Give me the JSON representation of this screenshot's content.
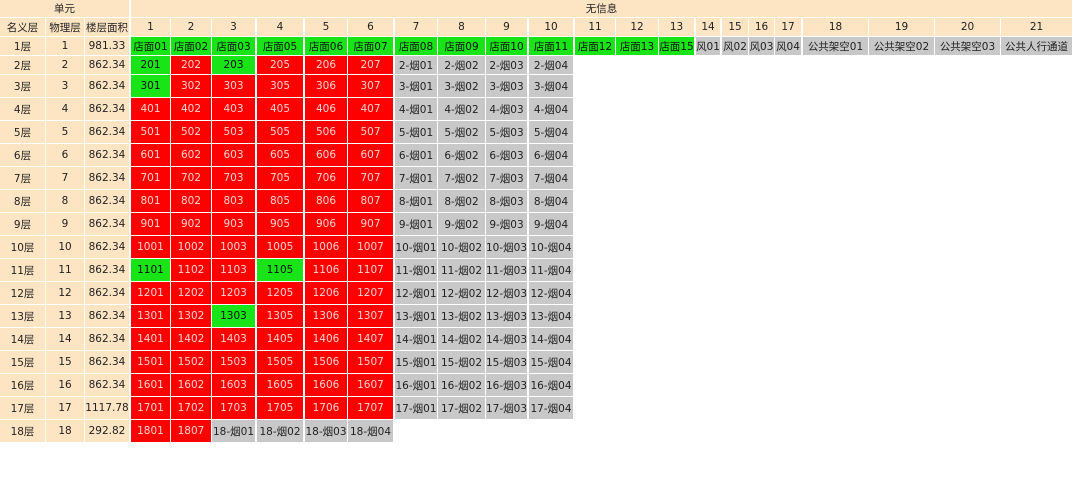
{
  "headers": {
    "unit": "单元",
    "info": "无信息",
    "col_labels": [
      "名义层",
      "物理层",
      "楼层面积"
    ],
    "col_numbers": [
      "1",
      "2",
      "3",
      "4",
      "5",
      "6",
      "7",
      "8",
      "9",
      "10",
      "11",
      "12",
      "13",
      "14",
      "15",
      "16",
      "17",
      "18",
      "19",
      "20",
      "21"
    ]
  },
  "colors": {
    "red": "#ff0000",
    "green": "#18e418",
    "gray": "#c8c8c8",
    "header": "#fde5c4"
  },
  "rows": [
    {
      "name": "1层",
      "phys": "1",
      "area": "981.33",
      "units": [
        {
          "t": "店面01",
          "s": "g"
        },
        {
          "t": "店面02",
          "s": "g"
        },
        {
          "t": "店面03",
          "s": "g"
        },
        {
          "t": "店面05",
          "s": "g"
        },
        {
          "t": "店面06",
          "s": "g"
        },
        {
          "t": "店面07",
          "s": "g"
        },
        {
          "t": "店面08",
          "s": "g"
        },
        {
          "t": "店面09",
          "s": "g"
        },
        {
          "t": "店面10",
          "s": "g"
        },
        {
          "t": "店面11",
          "s": "g"
        },
        {
          "t": "店面12",
          "s": "g"
        },
        {
          "t": "店面13",
          "s": "g"
        },
        {
          "t": "店面15",
          "s": "g"
        },
        {
          "t": "风01",
          "s": "x"
        },
        {
          "t": "风02",
          "s": "x"
        },
        {
          "t": "风03",
          "s": "x"
        },
        {
          "t": "风04",
          "s": "x"
        },
        {
          "t": "公共架空01",
          "s": "x"
        },
        {
          "t": "公共架空02",
          "s": "x"
        },
        {
          "t": "公共架空03",
          "s": "x"
        },
        {
          "t": "公共人行通道",
          "s": "x"
        }
      ]
    },
    {
      "name": "2层",
      "phys": "2",
      "area": "862.34",
      "units": [
        {
          "t": "201",
          "s": "g"
        },
        {
          "t": "202",
          "s": "r"
        },
        {
          "t": "203",
          "s": "g"
        },
        {
          "t": "205",
          "s": "r"
        },
        {
          "t": "206",
          "s": "r"
        },
        {
          "t": "207",
          "s": "r"
        },
        {
          "t": "2-烟01",
          "s": "x"
        },
        {
          "t": "2-烟02",
          "s": "x"
        },
        {
          "t": "2-烟03",
          "s": "x"
        },
        {
          "t": "2-烟04",
          "s": "x"
        }
      ]
    },
    {
      "name": "3层",
      "phys": "3",
      "area": "862.34",
      "units": [
        {
          "t": "301",
          "s": "g"
        },
        {
          "t": "302",
          "s": "r"
        },
        {
          "t": "303",
          "s": "r"
        },
        {
          "t": "305",
          "s": "r"
        },
        {
          "t": "306",
          "s": "r"
        },
        {
          "t": "307",
          "s": "r"
        },
        {
          "t": "3-烟01",
          "s": "x"
        },
        {
          "t": "3-烟02",
          "s": "x"
        },
        {
          "t": "3-烟03",
          "s": "x"
        },
        {
          "t": "3-烟04",
          "s": "x"
        }
      ]
    },
    {
      "name": "4层",
      "phys": "4",
      "area": "862.34",
      "units": [
        {
          "t": "401",
          "s": "r"
        },
        {
          "t": "402",
          "s": "r"
        },
        {
          "t": "403",
          "s": "r"
        },
        {
          "t": "405",
          "s": "r"
        },
        {
          "t": "406",
          "s": "r"
        },
        {
          "t": "407",
          "s": "r"
        },
        {
          "t": "4-烟01",
          "s": "x"
        },
        {
          "t": "4-烟02",
          "s": "x"
        },
        {
          "t": "4-烟03",
          "s": "x"
        },
        {
          "t": "4-烟04",
          "s": "x"
        }
      ]
    },
    {
      "name": "5层",
      "phys": "5",
      "area": "862.34",
      "units": [
        {
          "t": "501",
          "s": "r"
        },
        {
          "t": "502",
          "s": "r"
        },
        {
          "t": "503",
          "s": "r"
        },
        {
          "t": "505",
          "s": "r"
        },
        {
          "t": "506",
          "s": "r"
        },
        {
          "t": "507",
          "s": "r"
        },
        {
          "t": "5-烟01",
          "s": "x"
        },
        {
          "t": "5-烟02",
          "s": "x"
        },
        {
          "t": "5-烟03",
          "s": "x"
        },
        {
          "t": "5-烟04",
          "s": "x"
        }
      ]
    },
    {
      "name": "6层",
      "phys": "6",
      "area": "862.34",
      "units": [
        {
          "t": "601",
          "s": "r"
        },
        {
          "t": "602",
          "s": "r"
        },
        {
          "t": "603",
          "s": "r"
        },
        {
          "t": "605",
          "s": "r"
        },
        {
          "t": "606",
          "s": "r"
        },
        {
          "t": "607",
          "s": "r"
        },
        {
          "t": "6-烟01",
          "s": "x"
        },
        {
          "t": "6-烟02",
          "s": "x"
        },
        {
          "t": "6-烟03",
          "s": "x"
        },
        {
          "t": "6-烟04",
          "s": "x"
        }
      ]
    },
    {
      "name": "7层",
      "phys": "7",
      "area": "862.34",
      "units": [
        {
          "t": "701",
          "s": "r"
        },
        {
          "t": "702",
          "s": "r"
        },
        {
          "t": "703",
          "s": "r"
        },
        {
          "t": "705",
          "s": "r"
        },
        {
          "t": "706",
          "s": "r"
        },
        {
          "t": "707",
          "s": "r"
        },
        {
          "t": "7-烟01",
          "s": "x"
        },
        {
          "t": "7-烟02",
          "s": "x"
        },
        {
          "t": "7-烟03",
          "s": "x"
        },
        {
          "t": "7-烟04",
          "s": "x"
        }
      ]
    },
    {
      "name": "8层",
      "phys": "8",
      "area": "862.34",
      "units": [
        {
          "t": "801",
          "s": "r"
        },
        {
          "t": "802",
          "s": "r"
        },
        {
          "t": "803",
          "s": "r"
        },
        {
          "t": "805",
          "s": "r"
        },
        {
          "t": "806",
          "s": "r"
        },
        {
          "t": "807",
          "s": "r"
        },
        {
          "t": "8-烟01",
          "s": "x"
        },
        {
          "t": "8-烟02",
          "s": "x"
        },
        {
          "t": "8-烟03",
          "s": "x"
        },
        {
          "t": "8-烟04",
          "s": "x"
        }
      ]
    },
    {
      "name": "9层",
      "phys": "9",
      "area": "862.34",
      "units": [
        {
          "t": "901",
          "s": "r"
        },
        {
          "t": "902",
          "s": "r"
        },
        {
          "t": "903",
          "s": "r"
        },
        {
          "t": "905",
          "s": "r"
        },
        {
          "t": "906",
          "s": "r"
        },
        {
          "t": "907",
          "s": "r"
        },
        {
          "t": "9-烟01",
          "s": "x"
        },
        {
          "t": "9-烟02",
          "s": "x"
        },
        {
          "t": "9-烟03",
          "s": "x"
        },
        {
          "t": "9-烟04",
          "s": "x"
        }
      ]
    },
    {
      "name": "10层",
      "phys": "10",
      "area": "862.34",
      "units": [
        {
          "t": "1001",
          "s": "r"
        },
        {
          "t": "1002",
          "s": "r"
        },
        {
          "t": "1003",
          "s": "r"
        },
        {
          "t": "1005",
          "s": "r"
        },
        {
          "t": "1006",
          "s": "r"
        },
        {
          "t": "1007",
          "s": "r"
        },
        {
          "t": "10-烟01",
          "s": "x"
        },
        {
          "t": "10-烟02",
          "s": "x"
        },
        {
          "t": "10-烟03",
          "s": "x"
        },
        {
          "t": "10-烟04",
          "s": "x"
        }
      ]
    },
    {
      "name": "11层",
      "phys": "11",
      "area": "862.34",
      "units": [
        {
          "t": "1101",
          "s": "g"
        },
        {
          "t": "1102",
          "s": "r"
        },
        {
          "t": "1103",
          "s": "r"
        },
        {
          "t": "1105",
          "s": "g"
        },
        {
          "t": "1106",
          "s": "r"
        },
        {
          "t": "1107",
          "s": "r"
        },
        {
          "t": "11-烟01",
          "s": "x"
        },
        {
          "t": "11-烟02",
          "s": "x"
        },
        {
          "t": "11-烟03",
          "s": "x"
        },
        {
          "t": "11-烟04",
          "s": "x"
        }
      ]
    },
    {
      "name": "12层",
      "phys": "12",
      "area": "862.34",
      "units": [
        {
          "t": "1201",
          "s": "r"
        },
        {
          "t": "1202",
          "s": "r"
        },
        {
          "t": "1203",
          "s": "r"
        },
        {
          "t": "1205",
          "s": "r"
        },
        {
          "t": "1206",
          "s": "r"
        },
        {
          "t": "1207",
          "s": "r"
        },
        {
          "t": "12-烟01",
          "s": "x"
        },
        {
          "t": "12-烟02",
          "s": "x"
        },
        {
          "t": "12-烟03",
          "s": "x"
        },
        {
          "t": "12-烟04",
          "s": "x"
        }
      ]
    },
    {
      "name": "13层",
      "phys": "13",
      "area": "862.34",
      "units": [
        {
          "t": "1301",
          "s": "r"
        },
        {
          "t": "1302",
          "s": "r"
        },
        {
          "t": "1303",
          "s": "g"
        },
        {
          "t": "1305",
          "s": "r"
        },
        {
          "t": "1306",
          "s": "r"
        },
        {
          "t": "1307",
          "s": "r"
        },
        {
          "t": "13-烟01",
          "s": "x"
        },
        {
          "t": "13-烟02",
          "s": "x"
        },
        {
          "t": "13-烟03",
          "s": "x"
        },
        {
          "t": "13-烟04",
          "s": "x"
        }
      ]
    },
    {
      "name": "14层",
      "phys": "14",
      "area": "862.34",
      "units": [
        {
          "t": "1401",
          "s": "r"
        },
        {
          "t": "1402",
          "s": "r"
        },
        {
          "t": "1403",
          "s": "r"
        },
        {
          "t": "1405",
          "s": "r"
        },
        {
          "t": "1406",
          "s": "r"
        },
        {
          "t": "1407",
          "s": "r"
        },
        {
          "t": "14-烟01",
          "s": "x"
        },
        {
          "t": "14-烟02",
          "s": "x"
        },
        {
          "t": "14-烟03",
          "s": "x"
        },
        {
          "t": "14-烟04",
          "s": "x"
        }
      ]
    },
    {
      "name": "15层",
      "phys": "15",
      "area": "862.34",
      "units": [
        {
          "t": "1501",
          "s": "r"
        },
        {
          "t": "1502",
          "s": "r"
        },
        {
          "t": "1503",
          "s": "r"
        },
        {
          "t": "1505",
          "s": "r"
        },
        {
          "t": "1506",
          "s": "r"
        },
        {
          "t": "1507",
          "s": "r"
        },
        {
          "t": "15-烟01",
          "s": "x"
        },
        {
          "t": "15-烟02",
          "s": "x"
        },
        {
          "t": "15-烟03",
          "s": "x"
        },
        {
          "t": "15-烟04",
          "s": "x"
        }
      ]
    },
    {
      "name": "16层",
      "phys": "16",
      "area": "862.34",
      "units": [
        {
          "t": "1601",
          "s": "r"
        },
        {
          "t": "1602",
          "s": "r"
        },
        {
          "t": "1603",
          "s": "r"
        },
        {
          "t": "1605",
          "s": "r"
        },
        {
          "t": "1606",
          "s": "r"
        },
        {
          "t": "1607",
          "s": "r"
        },
        {
          "t": "16-烟01",
          "s": "x"
        },
        {
          "t": "16-烟02",
          "s": "x"
        },
        {
          "t": "16-烟03",
          "s": "x"
        },
        {
          "t": "16-烟04",
          "s": "x"
        }
      ]
    },
    {
      "name": "17层",
      "phys": "17",
      "area": "1117.78",
      "units": [
        {
          "t": "1701",
          "s": "r"
        },
        {
          "t": "1702",
          "s": "r"
        },
        {
          "t": "1703",
          "s": "r"
        },
        {
          "t": "1705",
          "s": "r"
        },
        {
          "t": "1706",
          "s": "r"
        },
        {
          "t": "1707",
          "s": "r"
        },
        {
          "t": "17-烟01",
          "s": "x"
        },
        {
          "t": "17-烟02",
          "s": "x"
        },
        {
          "t": "17-烟03",
          "s": "x"
        },
        {
          "t": "17-烟04",
          "s": "x"
        }
      ]
    },
    {
      "name": "18层",
      "phys": "18",
      "area": "292.82",
      "units": [
        {
          "t": "1801",
          "s": "r"
        },
        {
          "t": "1807",
          "s": "r"
        },
        {
          "t": "18-烟01",
          "s": "x"
        },
        {
          "t": "18-烟02",
          "s": "x"
        },
        {
          "t": "18-烟03",
          "s": "x"
        },
        {
          "t": "18-烟04",
          "s": "x"
        }
      ]
    }
  ]
}
